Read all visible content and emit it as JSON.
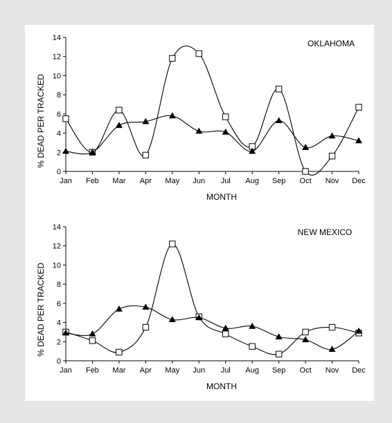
{
  "chart_data": [
    {
      "type": "line",
      "title": "OKLAHOMA",
      "xlabel": "MONTH",
      "ylabel": "% DEAD PER TRACKED",
      "categories": [
        "Jan",
        "Feb",
        "Mar",
        "Apr",
        "May",
        "Jun",
        "Jul",
        "Aug",
        "Sep",
        "Oct",
        "Nov",
        "Dec"
      ],
      "ylim": [
        0,
        14
      ],
      "yticks": [
        0,
        2,
        4,
        6,
        8,
        10,
        12,
        14
      ],
      "grid": false,
      "series": [
        {
          "marker": "open-square",
          "values": [
            5.5,
            2.0,
            6.4,
            1.7,
            11.8,
            12.3,
            5.7,
            2.6,
            8.6,
            0.0,
            1.6,
            6.7
          ]
        },
        {
          "marker": "filled-triangle",
          "values": [
            2.1,
            2.0,
            4.8,
            5.2,
            5.8,
            4.2,
            4.1,
            2.1,
            5.3,
            2.5,
            3.7,
            3.2
          ]
        }
      ]
    },
    {
      "type": "line",
      "title": "NEW MEXICO",
      "xlabel": "MONTH",
      "ylabel": "% DEAD PER TRACKED",
      "categories": [
        "Jan",
        "Feb",
        "Mar",
        "Apr",
        "May",
        "Jun",
        "Jul",
        "Aug",
        "Sep",
        "Oct",
        "Nov",
        "Dec"
      ],
      "ylim": [
        0,
        14
      ],
      "yticks": [
        0,
        2,
        4,
        6,
        8,
        10,
        12,
        14
      ],
      "grid": false,
      "series": [
        {
          "marker": "open-square",
          "values": [
            3.0,
            2.1,
            0.9,
            3.5,
            12.2,
            4.6,
            2.8,
            1.5,
            0.7,
            3.0,
            3.5,
            2.9
          ]
        },
        {
          "marker": "filled-triangle",
          "values": [
            2.9,
            2.8,
            5.4,
            5.6,
            4.3,
            4.5,
            3.4,
            3.6,
            2.5,
            2.2,
            1.2,
            3.1
          ]
        }
      ]
    }
  ]
}
